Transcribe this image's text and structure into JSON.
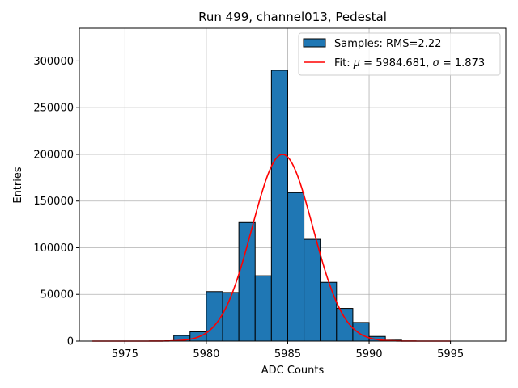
{
  "chart_data": {
    "type": "histogram",
    "title": "Run 499, channel013, Pedestal",
    "xlabel": "ADC Counts",
    "ylabel": "Entries",
    "xlim": [
      5972.2,
      5998.4
    ],
    "ylim": [
      0,
      335000
    ],
    "xticks": [
      5975,
      5980,
      5985,
      5990,
      5995
    ],
    "yticks": [
      0,
      50000,
      100000,
      150000,
      200000,
      250000,
      300000
    ],
    "grid": true,
    "legend_position": "top-right",
    "bin_width": 1,
    "bins": [
      {
        "x0": 5978,
        "value": 6000
      },
      {
        "x0": 5979,
        "value": 10000
      },
      {
        "x0": 5980,
        "value": 53000
      },
      {
        "x0": 5981,
        "value": 52000
      },
      {
        "x0": 5982,
        "value": 127000
      },
      {
        "x0": 5983,
        "value": 70000
      },
      {
        "x0": 5984,
        "value": 290000
      },
      {
        "x0": 5985,
        "value": 159000
      },
      {
        "x0": 5986,
        "value": 109000
      },
      {
        "x0": 5987,
        "value": 63000
      },
      {
        "x0": 5988,
        "value": 35000
      },
      {
        "x0": 5989,
        "value": 20000
      },
      {
        "x0": 5990,
        "value": 5000
      },
      {
        "x0": 5991,
        "value": 1000
      }
    ],
    "fit": {
      "mu": 5984.681,
      "sigma": 1.873,
      "amplitude": 200000,
      "x_range": [
        5973,
        5995
      ]
    },
    "legend": {
      "samples_label": "Samples: RMS=2.22",
      "fit_prefix": "Fit: ",
      "fit_mu_symbol": "μ",
      "fit_mu_text": " = 5984.681, ",
      "fit_sigma_symbol": "σ",
      "fit_sigma_text": " = 1.873"
    },
    "colors": {
      "bar_fill": "#1f77b4",
      "bar_edge": "#000000",
      "fit_line": "#ff0000",
      "grid": "#b0b0b0"
    }
  }
}
